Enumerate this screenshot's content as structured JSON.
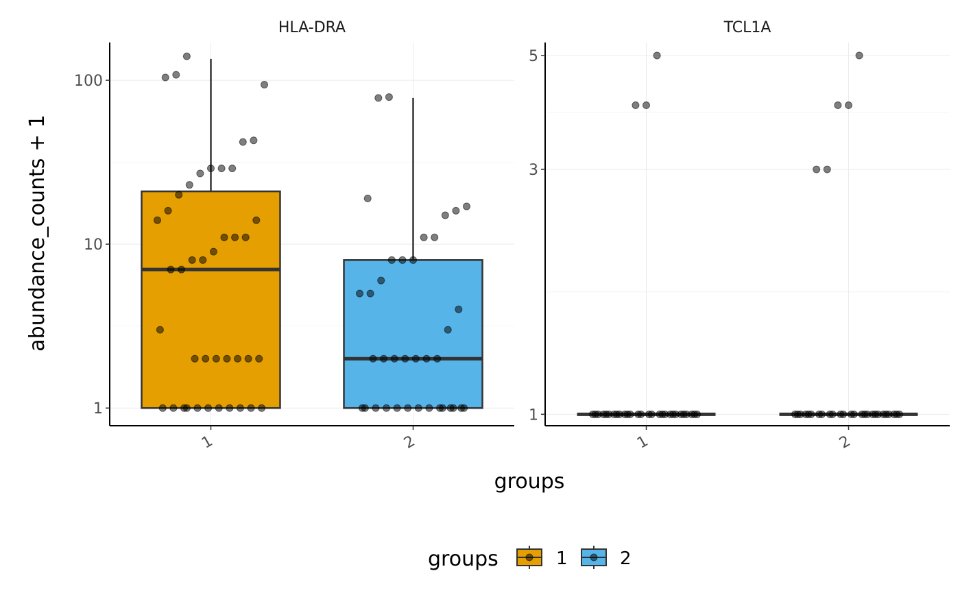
{
  "chart_data": [
    {
      "type": "box",
      "facet": "HLA-DRA",
      "scale": "log10",
      "ylim": [
        0.78,
        170
      ],
      "y_ticks": [
        1,
        10,
        100
      ],
      "y_tick_labels": [
        "1",
        "10",
        "100"
      ],
      "categories": [
        "1",
        "2"
      ],
      "boxes": [
        {
          "group": "1",
          "lower_whisker": 1,
          "q1": 1,
          "median": 7,
          "q3": 21,
          "upper_whisker": 135,
          "fill": "#E69F00"
        },
        {
          "group": "2",
          "lower_whisker": 1,
          "q1": 1,
          "median": 2,
          "q3": 8,
          "upper_whisker": 78,
          "fill": "#56B4E9"
        }
      ],
      "points": [
        {
          "group": "1",
          "values": [
            140,
            108,
            104,
            94,
            43,
            42,
            29,
            29,
            29,
            27,
            23,
            20,
            16,
            14,
            14,
            11,
            11,
            11,
            9,
            8,
            8,
            7,
            7,
            3,
            2,
            2,
            2,
            2,
            2,
            2,
            2,
            1,
            1,
            1,
            1,
            1,
            1,
            1,
            1,
            1,
            1,
            1
          ]
        },
        {
          "group": "2",
          "values": [
            79,
            78,
            19,
            17,
            16,
            15,
            11,
            11,
            8,
            8,
            8,
            6,
            5,
            5,
            4,
            3,
            2,
            2,
            2,
            2,
            2,
            2,
            2,
            1,
            1,
            1,
            1,
            1,
            1,
            1,
            1,
            1,
            1,
            1,
            1,
            1,
            1
          ]
        }
      ]
    },
    {
      "type": "box",
      "facet": "TCL1A",
      "scale": "log10",
      "ylim": [
        0.95,
        5.3
      ],
      "y_ticks": [
        1,
        3,
        5
      ],
      "y_tick_labels": [
        "1",
        "3",
        "5"
      ],
      "categories": [
        "1",
        "2"
      ],
      "boxes": [
        {
          "group": "1",
          "lower_whisker": 1,
          "q1": 1,
          "median": 1,
          "q3": 1,
          "upper_whisker": 1,
          "fill": "#E69F00"
        },
        {
          "group": "2",
          "lower_whisker": 1,
          "q1": 1,
          "median": 1,
          "q3": 1,
          "upper_whisker": 1,
          "fill": "#56B4E9"
        }
      ],
      "points": [
        {
          "group": "1",
          "values": [
            5,
            4,
            4,
            1,
            1,
            1,
            1,
            1,
            1,
            1,
            1,
            1,
            1,
            1,
            1,
            1,
            1,
            1,
            1,
            1,
            1,
            1,
            1,
            1,
            1,
            1,
            1,
            1,
            1,
            1,
            1
          ]
        },
        {
          "group": "2",
          "values": [
            5,
            4,
            4,
            3,
            3,
            1,
            1,
            1,
            1,
            1,
            1,
            1,
            1,
            1,
            1,
            1,
            1,
            1,
            1,
            1,
            1,
            1,
            1,
            1,
            1,
            1,
            1,
            1,
            1,
            1,
            1
          ]
        }
      ]
    }
  ],
  "labels": {
    "ylabel": "abundance_counts + 1",
    "xlabel": "groups",
    "legend_title": "groups",
    "legend_items": [
      "1",
      "2"
    ]
  },
  "colors": {
    "group1": "#E69F00",
    "group2": "#56B4E9",
    "point": "#000000",
    "grid": "#ebebeb"
  }
}
